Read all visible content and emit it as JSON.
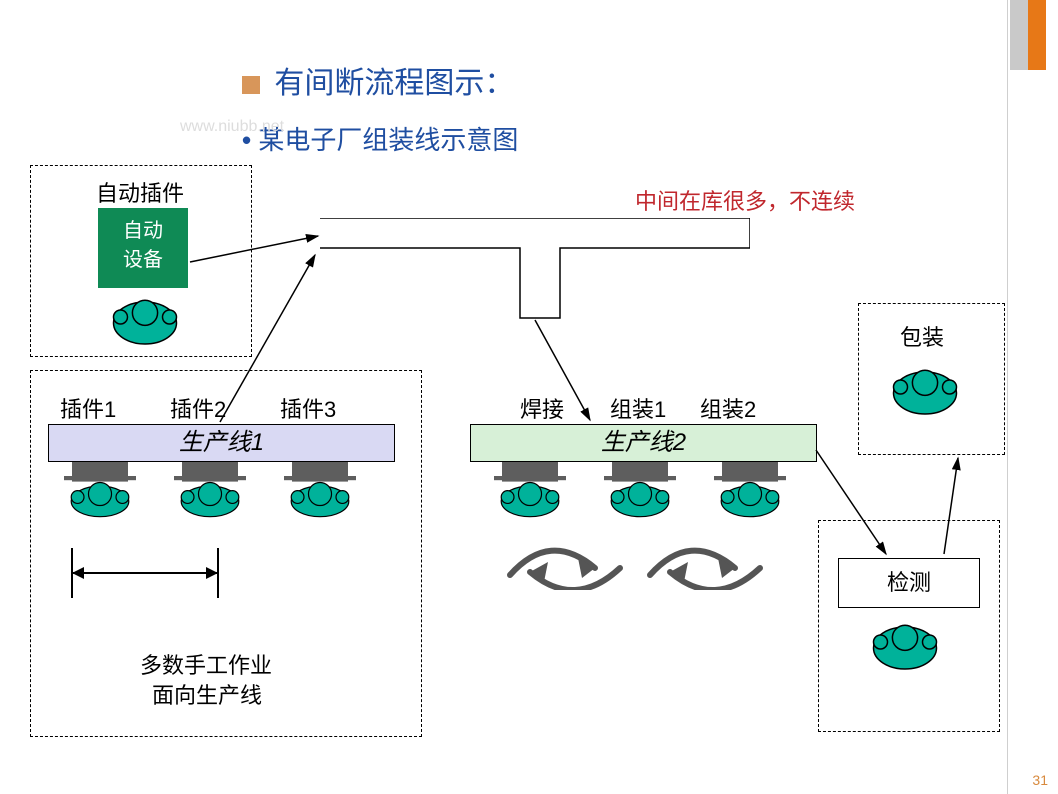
{
  "colors": {
    "title": "#1f4ea1",
    "subtitle": "#1f4ea1",
    "bullet": "#d8965a",
    "warn": "#c0272d",
    "green_fill": "#0f8a55",
    "teal": "#00b29a",
    "line1_fill": "#d9d9f3",
    "line2_fill": "#d7f0d7",
    "accent1": "#e77817",
    "accent2": "#c9c9c9",
    "gray_block": "#5e5e5e",
    "pagenum": "#d88a3e",
    "rule": "#cfcfcf"
  },
  "title": "有间断流程图示：",
  "subtitle": "某电子厂组装线示意图",
  "warn_text": "中间在库很多，不连续",
  "auto": {
    "label": "自动插件",
    "box_text1": "自动",
    "box_text2": "设备"
  },
  "line1": {
    "title": "生产线1",
    "cols": [
      "插件1",
      "插件2",
      "插件3"
    ],
    "note1": "多数手工作业",
    "note2": "面向生产线"
  },
  "line2": {
    "title": "生产线2",
    "cols": [
      "焊接",
      "组装1",
      "组装2"
    ]
  },
  "inspect": "检测",
  "pack": "包装",
  "page_number": "31",
  "watermark": "www.niubb.net"
}
